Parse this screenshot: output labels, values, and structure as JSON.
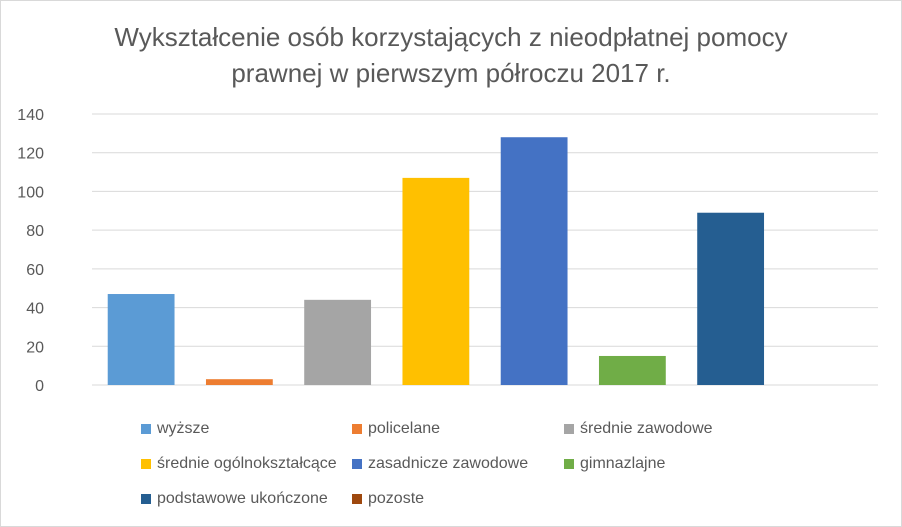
{
  "chart_data": {
    "type": "bar",
    "title_lines": [
      "Wykształcenie osób korzystających z nieodpłatnej pomocy",
      "prawnej w pierwszym półroczu 2017 r."
    ],
    "xlabel": "",
    "ylabel": "",
    "ylim": [
      0,
      140
    ],
    "yticks": [
      "0",
      "20",
      "40",
      "60",
      "80",
      "100",
      "120",
      "140"
    ],
    "grid": true,
    "legend_position": "bottom",
    "series": [
      {
        "name": "wyższe",
        "value": 47,
        "color": "#5b9bd5"
      },
      {
        "name": "policelane",
        "value": 3,
        "color": "#ed7d31"
      },
      {
        "name": "średnie zawodowe",
        "value": 44,
        "color": "#a5a5a5"
      },
      {
        "name": "średnie ogólnokształcące",
        "value": 107,
        "color": "#ffc000"
      },
      {
        "name": "zasadnicze zawodowe",
        "value": 128,
        "color": "#4472c4"
      },
      {
        "name": "gimnazlajne",
        "value": 15,
        "color": "#70ad47"
      },
      {
        "name": "podstawowe ukończone",
        "value": 89,
        "color": "#255e91"
      },
      {
        "name": "pozoste",
        "value": 0,
        "color": "#9e480e"
      }
    ]
  }
}
